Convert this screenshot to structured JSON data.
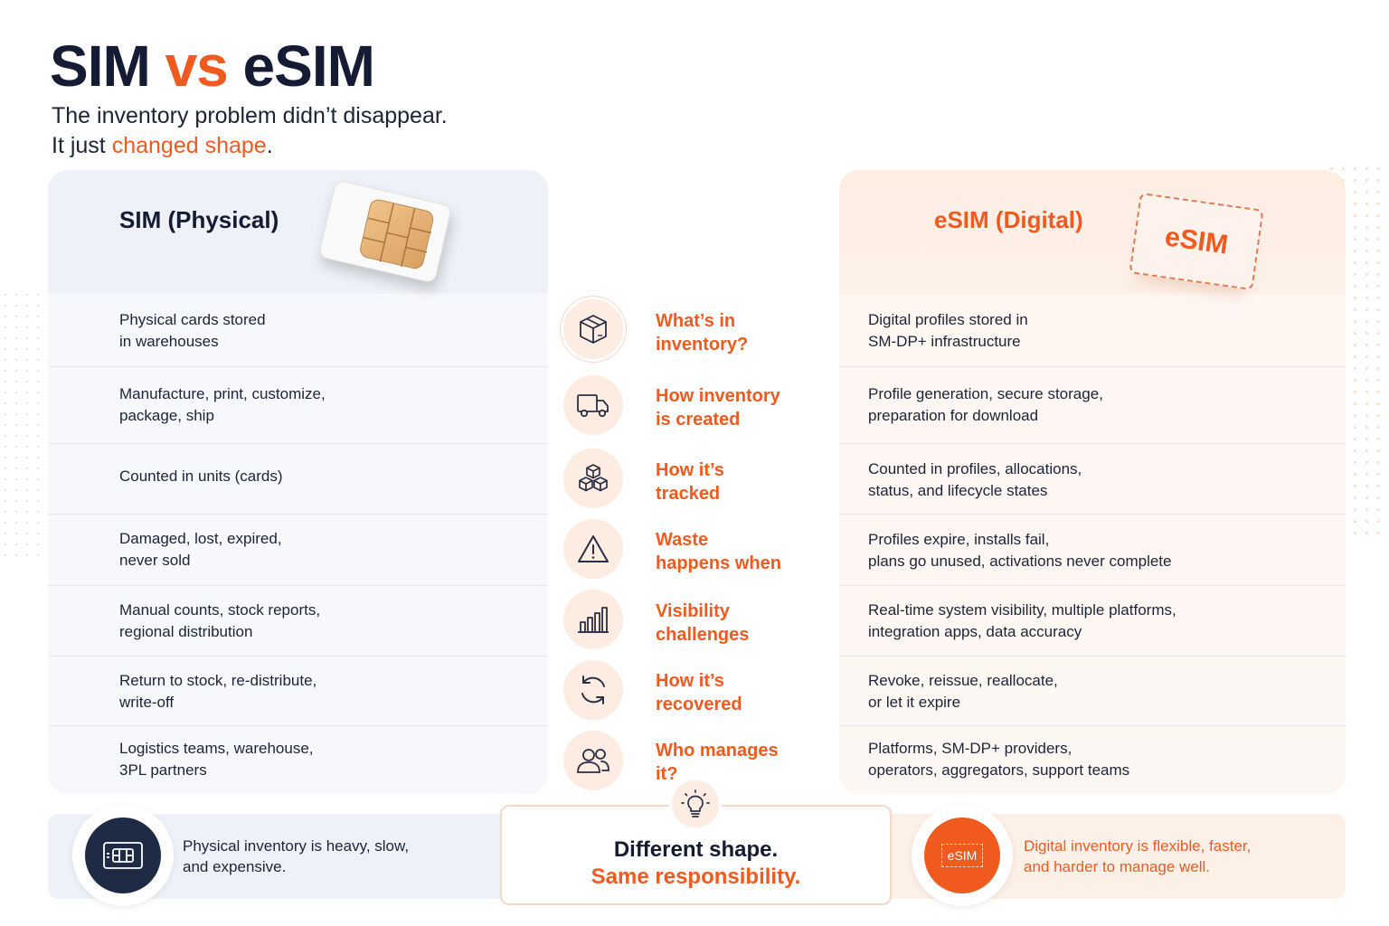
{
  "title": {
    "part1": "SIM",
    "part2": "vs",
    "part3": "eSIM"
  },
  "subtitle": {
    "line1": "The inventory problem didn’t disappear.",
    "line2_prefix": "It just",
    "line2_highlight": "changed shape",
    "line2_suffix": "."
  },
  "columns": {
    "left_heading": "SIM (Physical)",
    "right_heading": "eSIM (Digital)",
    "esim_card_label": "eSIM"
  },
  "rows": [
    {
      "question": "What’s in inventory?",
      "icon": "box-icon",
      "sim": "Physical cards stored in warehouses",
      "esim": "Digital profiles stored in SM-DP+ infrastructure"
    },
    {
      "question": "How inventory is created",
      "icon": "truck-icon",
      "sim": "Manufacture, print, customize, package, ship",
      "esim": "Profile generation, secure storage, preparation for download"
    },
    {
      "question": "How it’s tracked",
      "icon": "cubes-icon",
      "sim": "Counted in units (cards)",
      "esim": "Counted in profiles, allocations, status, and lifecycle states"
    },
    {
      "question": "Waste happens when",
      "icon": "warning-icon",
      "sim": "Damaged, lost, expired, never sold",
      "esim": "Profiles expire, installs fail, plans go unused, activations never complete"
    },
    {
      "question": "Visibility challenges",
      "icon": "bar-chart-icon",
      "sim": "Manual counts, stock reports, regional distribution",
      "esim": "Real-time system visibility, multiple platforms, integration apps, data accuracy"
    },
    {
      "question": "How it’s recovered",
      "icon": "refresh-icon",
      "sim": "Return to stock, re-distribute, write-off",
      "esim": "Revoke, reissue, reallocate, or let it expire"
    },
    {
      "question": "Who manages it?",
      "icon": "people-icon",
      "sim": "Logistics teams, warehouse, 3PL partners",
      "esim": "Platforms, SM-DP+ providers, operators, aggregators, support teams"
    }
  ],
  "rows_display": {
    "q": [
      [
        "What’s in",
        "inventory?"
      ],
      [
        "How inventory",
        "is created"
      ],
      [
        "How it’s",
        "tracked"
      ],
      [
        "Waste",
        "happens when"
      ],
      [
        "Visibility",
        "challenges"
      ],
      [
        "How it’s",
        "recovered"
      ],
      [
        "Who manages",
        "it?"
      ]
    ],
    "sim": [
      [
        "Physical cards stored",
        "in warehouses"
      ],
      [
        "Manufacture, print, customize,",
        "package, ship"
      ],
      [
        "Counted in units (cards)",
        ""
      ],
      [
        "Damaged, lost, expired,",
        "never sold"
      ],
      [
        "Manual counts, stock reports,",
        "regional distribution"
      ],
      [
        "Return to stock, re-distribute,",
        "write-off"
      ],
      [
        "Logistics teams, warehouse,",
        "3PL partners"
      ]
    ],
    "esim": [
      [
        "Digital profiles stored in",
        "SM-DP+ infrastructure"
      ],
      [
        "Profile generation, secure storage,",
        "preparation for download"
      ],
      [
        "Counted in profiles, allocations,",
        "status, and lifecycle states"
      ],
      [
        "Profiles expire, installs fail,",
        "plans go unused, activations never complete"
      ],
      [
        "Real-time system visibility, multiple platforms,",
        "integration apps, data accuracy"
      ],
      [
        "Revoke, reissue, reallocate,",
        "or let it expire"
      ],
      [
        "Platforms, SM-DP+ providers,",
        "operators, aggregators, support teams"
      ]
    ]
  },
  "footer": {
    "left_line1": "Physical inventory is heavy, slow,",
    "left_line2": "and expensive.",
    "center_line1": "Different shape.",
    "center_line2": "Same responsibility.",
    "right_line1": "Digital inventory is flexible, faster,",
    "right_line2": "and harder to manage well.",
    "right_badge_label": "eSIM"
  },
  "colors": {
    "accent": "#f15a1f",
    "navy": "#141b33"
  }
}
